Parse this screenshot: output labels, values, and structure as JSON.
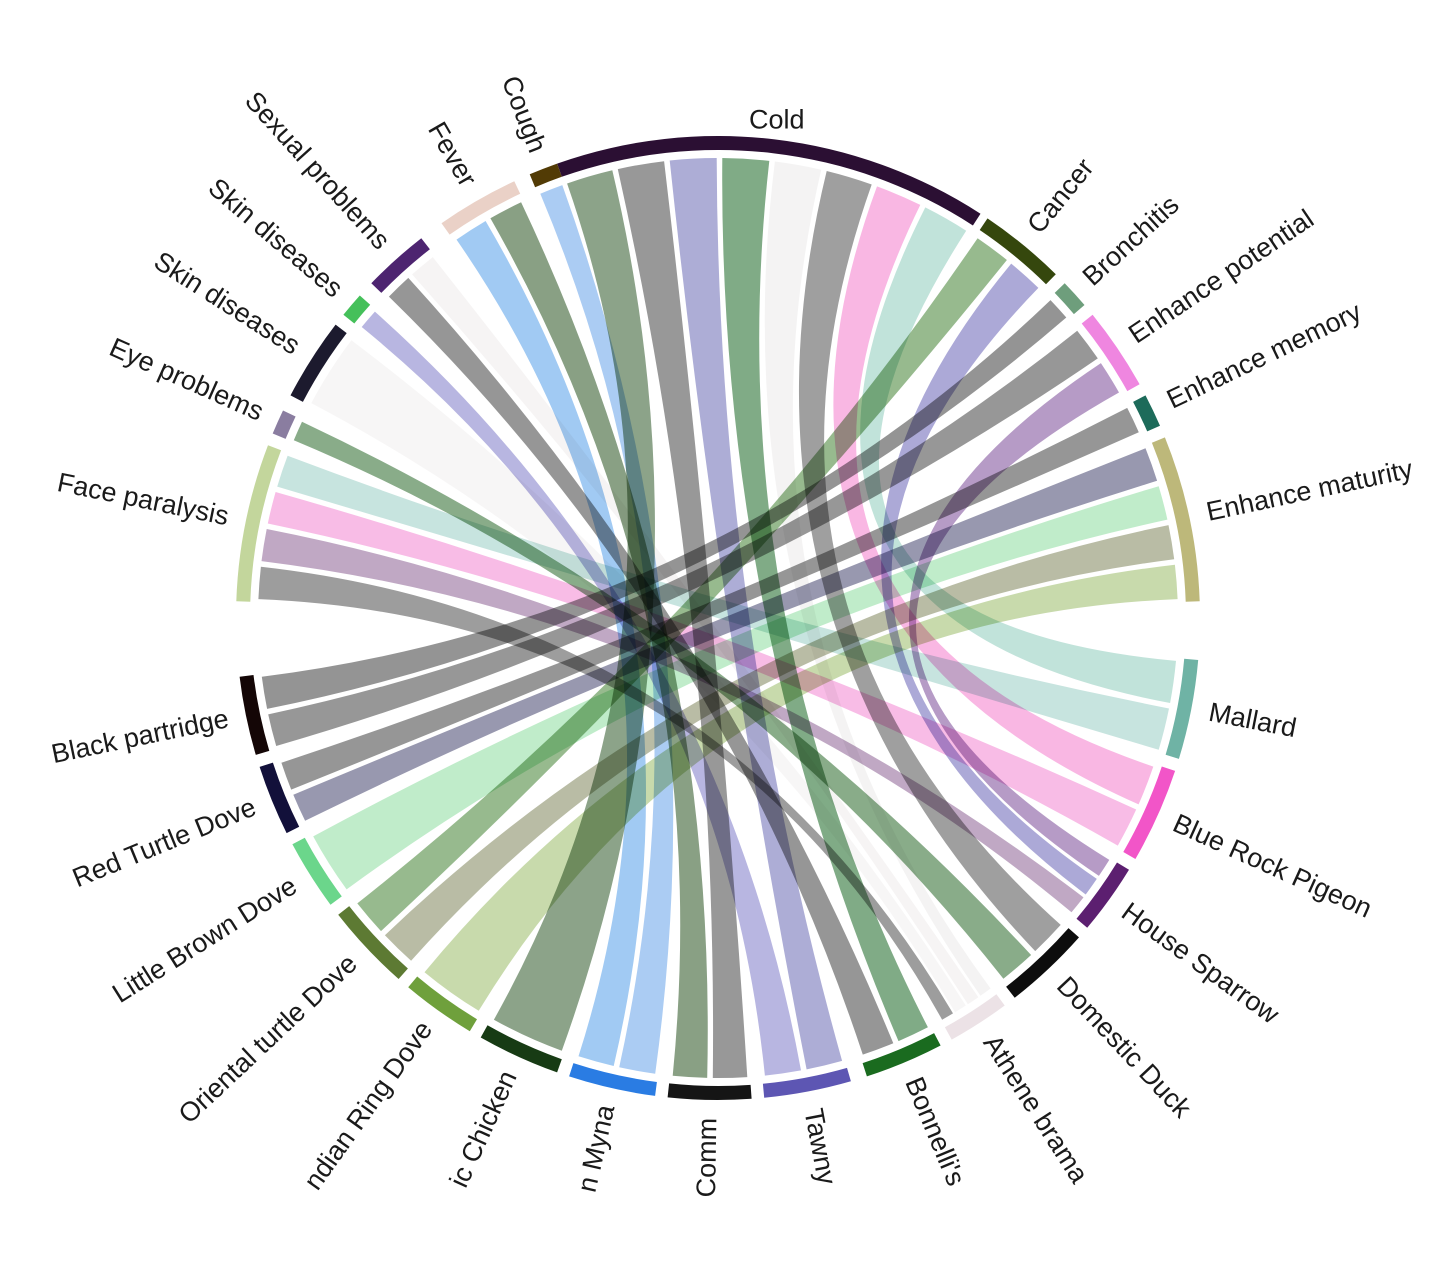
{
  "chart_data": {
    "type": "chord",
    "title": "",
    "sectors": [
      {
        "label": "Cold",
        "color": "#2b0f33"
      },
      {
        "label": "Cancer",
        "color": "#35470d"
      },
      {
        "label": "Bronchitis",
        "color": "#6e9e7c"
      },
      {
        "label": "Enhance potential",
        "color": "#ef86e0"
      },
      {
        "label": "Enhance memory",
        "color": "#1d6b5a"
      },
      {
        "label": "Enhance maturity",
        "color": "#bdb87a"
      },
      {
        "label": "Mallard",
        "color": "#6fb3a5"
      },
      {
        "label": "Blue Rock Pigeon",
        "color": "#f255c8"
      },
      {
        "label": "House Sparrow",
        "color": "#5c1f70"
      },
      {
        "label": "Domestic Duck",
        "color": "#0d0d0d"
      },
      {
        "label": "Athene brama",
        "color": "#ece2e6"
      },
      {
        "label": "Bonnelli's",
        "color": "#1a6b1f"
      },
      {
        "label": "Tawny",
        "color": "#5d56b3"
      },
      {
        "label": "Comm",
        "color": "#151515"
      },
      {
        "label": "n Myna",
        "color": "#2a7ce3"
      },
      {
        "label": "ic Chicken",
        "color": "#173b14"
      },
      {
        "label": "ndian Ring Dove",
        "color": "#6fa03c"
      },
      {
        "label": "Oriental turtle Dove",
        "color": "#5d7a33"
      },
      {
        "label": "Little Brown Dove",
        "color": "#6bd68b"
      },
      {
        "label": "Red Turtle Dove",
        "color": "#12103a"
      },
      {
        "label": "Black partridge",
        "color": "#140606"
      },
      {
        "label": "Face paralysis",
        "color": "#c3d69c"
      },
      {
        "label": "Eye problems",
        "color": "#8a7da0"
      },
      {
        "label": "Skin diseases",
        "color": "#1c1a2e"
      },
      {
        "label": "Skin diseases",
        "color": "#45c05a"
      },
      {
        "label": "Sexual problems",
        "color": "#4d2470"
      },
      {
        "label": "Fever",
        "color": "#ead1c7"
      },
      {
        "label": "Cough",
        "color": "#523b05"
      }
    ],
    "links": [
      {
        "source": "Cold",
        "target": "Domestic Duck",
        "value": 1,
        "color": "#7a7a7a"
      },
      {
        "source": "Cold",
        "target": "Bonnelli's",
        "value": 1,
        "color": "#4f8a57"
      },
      {
        "source": "Cold",
        "target": "Tawny",
        "value": 1,
        "color": "#8e8ec6"
      },
      {
        "source": "Cold",
        "target": "Comm",
        "value": 1,
        "color": "#707070"
      },
      {
        "source": "Cold",
        "target": "Athene brama",
        "value": 1,
        "color": "#f0eeee"
      },
      {
        "source": "Cold",
        "target": "ic Chicken",
        "value": 1,
        "color": "#5f7f5c"
      },
      {
        "source": "Cold",
        "target": "Blue Rock Pigeon",
        "value": 1,
        "color": "#f79bd8"
      },
      {
        "source": "Cold",
        "target": "Mallard",
        "value": 1,
        "color": "#a9d8cc"
      },
      {
        "source": "Cancer",
        "target": "House Sparrow",
        "value": 1,
        "color": "#8c88c8"
      },
      {
        "source": "Cancer",
        "target": "Oriental turtle Dove",
        "value": 1,
        "color": "#6f9f62"
      },
      {
        "source": "Bronchitis",
        "target": "Black partridge",
        "value": 1,
        "color": "#6b6b6b"
      },
      {
        "source": "Enhance potential",
        "target": "Black partridge",
        "value": 1,
        "color": "#6f6f6f"
      },
      {
        "source": "Enhance potential",
        "target": "House Sparrow",
        "value": 1,
        "color": "#9a75b0"
      },
      {
        "source": "Enhance memory",
        "target": "Red Turtle Dove",
        "value": 1,
        "color": "#6e6e6e"
      },
      {
        "source": "Enhance maturity",
        "target": "Red Turtle Dove",
        "value": 1,
        "color": "#707090"
      },
      {
        "source": "Enhance maturity",
        "target": "Little Brown Dove",
        "value": 1,
        "color": "#a8e4b6"
      },
      {
        "source": "Enhance maturity",
        "target": "Oriental turtle Dove",
        "value": 1,
        "color": "#9ea282"
      },
      {
        "source": "Enhance maturity",
        "target": "ndian Ring Dove",
        "value": 1,
        "color": "#b3cc8c"
      },
      {
        "source": "Face paralysis",
        "target": "House Sparrow",
        "value": 1,
        "color": "#a886ad"
      },
      {
        "source": "Face paralysis",
        "target": "Blue Rock Pigeon",
        "value": 1,
        "color": "#f5a2dc"
      },
      {
        "source": "Face paralysis",
        "target": "Mallard",
        "value": 1,
        "color": "#b1dad3"
      },
      {
        "source": "Face paralysis",
        "target": "Athene brama",
        "value": 1,
        "color": "#777777"
      },
      {
        "source": "Eye problems",
        "target": "Domestic Duck",
        "value": 1,
        "color": "#5c8c5c"
      },
      {
        "source": "Skin diseases",
        "target": "Athene brama",
        "value": 1,
        "color": "#f4f2f2"
      },
      {
        "source": "Skin diseases",
        "target": "Tawny",
        "value": 1,
        "color": "#9c9ad6"
      },
      {
        "source": "Sexual problems",
        "target": "Bonnelli's",
        "value": 1,
        "color": "#6d6d6d"
      },
      {
        "source": "Sexual problems",
        "target": "Athene brama",
        "value": 1,
        "color": "#f2f0f0"
      },
      {
        "source": "Fever",
        "target": "Comm",
        "value": 1,
        "color": "#5b7b55"
      },
      {
        "source": "Fever",
        "target": "n Myna",
        "value": 1,
        "color": "#7db5ee"
      },
      {
        "source": "Cough",
        "target": "n Myna",
        "value": 1,
        "color": "#8ab8ee"
      }
    ]
  }
}
